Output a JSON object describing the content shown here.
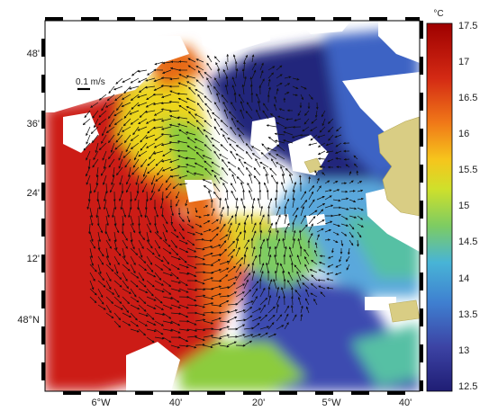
{
  "map": {
    "lat_ticks": [
      "48'",
      "36'",
      "24'",
      "12'",
      "48°N"
    ],
    "lon_ticks": [
      "6°W",
      "40'",
      "20'",
      "5°W",
      "40'"
    ],
    "scale_label": "0.1 m/s"
  },
  "colorbar": {
    "unit": "°C",
    "ticks": [
      "17.5",
      "17",
      "16.5",
      "16",
      "15.5",
      "15",
      "14.5",
      "14",
      "13.5",
      "13",
      "12.5"
    ],
    "min": 12.5,
    "max": 17.5,
    "stops": [
      "#9e0000",
      "#d42a14",
      "#f07818",
      "#f6c51c",
      "#cfe02b",
      "#7dcc62",
      "#48b4d6",
      "#3f7fd0",
      "#3c43a4",
      "#1f1d74"
    ]
  },
  "colors": {
    "warm": "#cc1c14",
    "orange": "#e86a18",
    "yellow": "#ecd61f",
    "green": "#8ccc3c",
    "teal": "#57c0a4",
    "lightblue": "#5aa8dc",
    "blue": "#3d64c4",
    "darkblue": "#24277c",
    "land": "#d9cd84",
    "nodata": "#ffffff"
  }
}
